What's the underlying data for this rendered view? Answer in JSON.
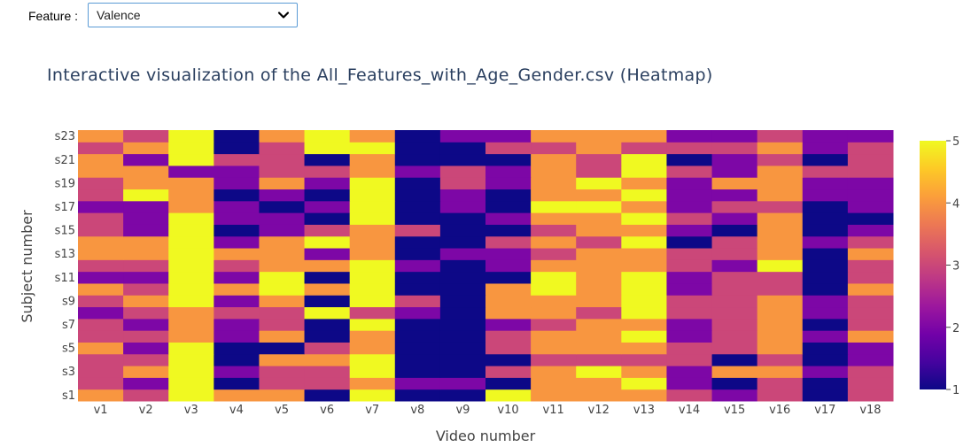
{
  "toolbar": {
    "feature_label": "Feature :",
    "feature_value": "Valence",
    "dropdown_icon": "chevron-down-icon"
  },
  "chart_data": {
    "type": "heatmap",
    "title": "Interactive visualization of the All_Features_with_Age_Gender.csv (Heatmap)",
    "xlabel": "Video number",
    "ylabel": "Subject number",
    "x": [
      "v1",
      "v2",
      "v3",
      "v4",
      "v5",
      "v6",
      "v7",
      "v8",
      "v9",
      "v10",
      "v11",
      "v12",
      "v13",
      "v14",
      "v15",
      "v16",
      "v17",
      "v18"
    ],
    "y": [
      "s1",
      "s2",
      "s3",
      "s4",
      "s5",
      "s6",
      "s7",
      "s8",
      "s9",
      "s10",
      "s11",
      "s12",
      "s13",
      "s14",
      "s15",
      "s16",
      "s17",
      "s18",
      "s19",
      "s20",
      "s21",
      "s22",
      "s23"
    ],
    "y_tick_labels": [
      "s1",
      "s3",
      "s5",
      "s7",
      "s9",
      "s11",
      "s13",
      "s15",
      "s17",
      "s19",
      "s21",
      "s23"
    ],
    "zmin": 1,
    "zmax": 5,
    "colorscale": "Plasma",
    "colorbar_ticks": [
      1,
      2,
      3,
      4,
      5
    ],
    "z": [
      [
        4,
        3,
        5,
        4,
        4,
        1,
        5,
        1,
        1,
        5,
        4,
        4,
        4,
        3,
        2,
        3,
        1,
        3
      ],
      [
        3,
        2,
        5,
        1,
        3,
        3,
        4,
        2,
        2,
        1,
        4,
        4,
        5,
        2,
        1,
        3,
        1,
        3
      ],
      [
        3,
        4,
        5,
        2,
        3,
        3,
        5,
        1,
        1,
        3,
        4,
        5,
        4,
        2,
        4,
        4,
        2,
        3
      ],
      [
        3,
        3,
        5,
        1,
        4,
        4,
        5,
        1,
        1,
        1,
        3,
        3,
        3,
        3,
        1,
        3,
        1,
        2
      ],
      [
        4,
        2,
        5,
        1,
        1,
        3,
        4,
        1,
        1,
        3,
        4,
        4,
        4,
        3,
        3,
        4,
        1,
        2
      ],
      [
        3,
        3,
        4,
        2,
        4,
        1,
        4,
        1,
        1,
        3,
        4,
        4,
        5,
        2,
        3,
        4,
        2,
        4
      ],
      [
        3,
        2,
        4,
        2,
        3,
        1,
        5,
        1,
        1,
        2,
        3,
        4,
        4,
        2,
        3,
        4,
        1,
        3
      ],
      [
        2,
        3,
        4,
        3,
        3,
        5,
        3,
        2,
        1,
        4,
        4,
        3,
        5,
        3,
        3,
        4,
        2,
        3
      ],
      [
        3,
        4,
        5,
        2,
        4,
        1,
        5,
        3,
        1,
        4,
        4,
        4,
        5,
        3,
        3,
        4,
        2,
        3
      ],
      [
        4,
        3,
        5,
        4,
        5,
        4,
        5,
        1,
        1,
        4,
        5,
        4,
        5,
        2,
        3,
        3,
        1,
        4
      ],
      [
        2,
        2,
        5,
        2,
        5,
        1,
        5,
        1,
        1,
        1,
        5,
        4,
        5,
        2,
        3,
        3,
        1,
        3
      ],
      [
        3,
        3,
        5,
        3,
        4,
        4,
        5,
        2,
        1,
        2,
        4,
        4,
        4,
        3,
        2,
        5,
        1,
        3
      ],
      [
        4,
        4,
        5,
        4,
        4,
        2,
        4,
        1,
        2,
        2,
        3,
        4,
        4,
        3,
        3,
        4,
        1,
        4
      ],
      [
        4,
        4,
        5,
        2,
        4,
        5,
        4,
        1,
        1,
        3,
        4,
        3,
        5,
        1,
        3,
        4,
        2,
        3
      ],
      [
        3,
        2,
        5,
        1,
        2,
        3,
        4,
        3,
        1,
        1,
        3,
        4,
        4,
        2,
        1,
        4,
        1,
        2
      ],
      [
        3,
        2,
        5,
        2,
        2,
        1,
        5,
        1,
        1,
        2,
        4,
        4,
        5,
        3,
        2,
        4,
        1,
        1
      ],
      [
        2,
        2,
        4,
        2,
        1,
        2,
        5,
        1,
        2,
        1,
        5,
        5,
        4,
        2,
        3,
        3,
        1,
        2
      ],
      [
        3,
        5,
        4,
        1,
        2,
        1,
        5,
        1,
        2,
        1,
        4,
        4,
        5,
        2,
        2,
        4,
        2,
        2
      ],
      [
        3,
        4,
        4,
        2,
        4,
        2,
        5,
        1,
        3,
        2,
        4,
        5,
        4,
        2,
        4,
        4,
        2,
        2
      ],
      [
        4,
        4,
        2,
        2,
        3,
        3,
        4,
        2,
        3,
        2,
        4,
        3,
        5,
        3,
        2,
        4,
        3,
        3
      ],
      [
        4,
        2,
        5,
        3,
        3,
        1,
        4,
        1,
        1,
        1,
        4,
        3,
        5,
        1,
        2,
        3,
        1,
        3
      ],
      [
        3,
        4,
        5,
        1,
        3,
        5,
        5,
        1,
        1,
        3,
        3,
        4,
        3,
        3,
        3,
        4,
        2,
        3
      ],
      [
        4,
        3,
        5,
        1,
        4,
        5,
        4,
        1,
        2,
        2,
        4,
        4,
        4,
        2,
        2,
        3,
        2,
        2
      ]
    ]
  }
}
